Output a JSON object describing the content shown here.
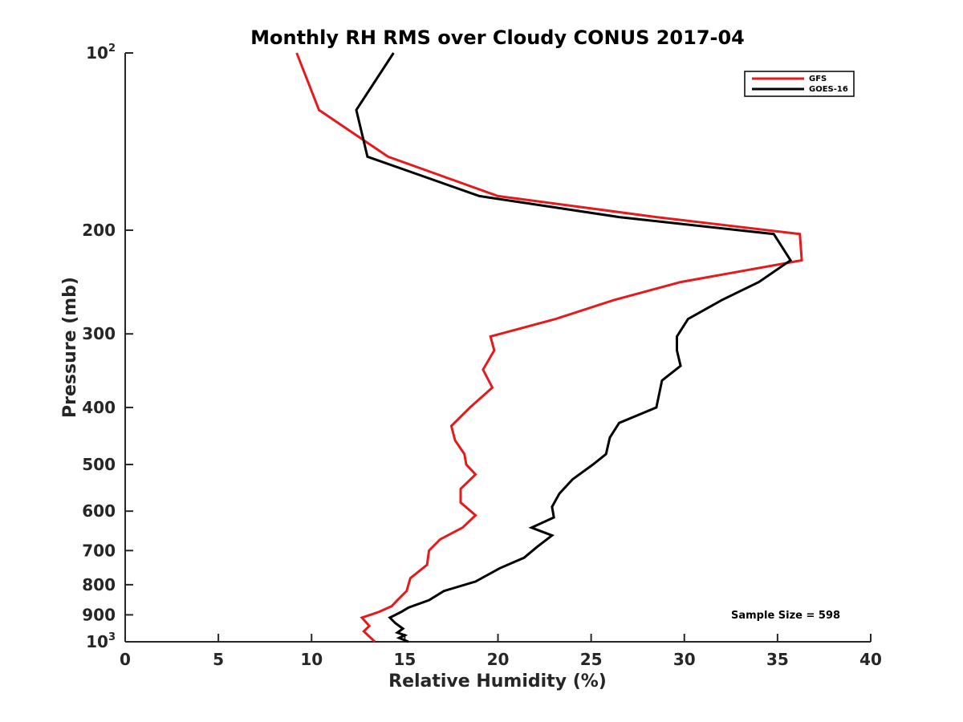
{
  "chart_data": {
    "type": "line",
    "title": "Monthly RH RMS over Cloudy CONUS  2017-04",
    "xlabel": "Relative Humidity (%)",
    "ylabel": "Pressure (mb)",
    "xlim": [
      0,
      40
    ],
    "ylim": [
      100,
      1000
    ],
    "y_scale": "log",
    "y_reversed": true,
    "grid": false,
    "x_ticks": [
      "0",
      "5",
      "10",
      "15",
      "20",
      "25",
      "30",
      "35",
      "40"
    ],
    "y_ticks": [
      {
        "value": 100,
        "base": "10",
        "exp": "2"
      },
      {
        "value": 200,
        "label": "200"
      },
      {
        "value": 300,
        "label": "300"
      },
      {
        "value": 400,
        "label": "400"
      },
      {
        "value": 500,
        "label": "500"
      },
      {
        "value": 600,
        "label": "600"
      },
      {
        "value": 700,
        "label": "700"
      },
      {
        "value": 800,
        "label": "800"
      },
      {
        "value": 900,
        "label": "900"
      },
      {
        "value": 1000,
        "base": "10",
        "exp": "3"
      }
    ],
    "legend_position": "top-right",
    "annotation": "Sample Size = 598",
    "series": [
      {
        "name": "GFS",
        "color": "#e41a1c",
        "points": [
          [
            9.2,
            100
          ],
          [
            10.4,
            125
          ],
          [
            14.1,
            150
          ],
          [
            20,
            175
          ],
          [
            28.5,
            190
          ],
          [
            36.2,
            203
          ],
          [
            36.3,
            225
          ],
          [
            29.8,
            245
          ],
          [
            26.2,
            263
          ],
          [
            23.1,
            283
          ],
          [
            19.6,
            303
          ],
          [
            19.8,
            320
          ],
          [
            19.2,
            345
          ],
          [
            19.7,
            370
          ],
          [
            18.5,
            400
          ],
          [
            17.5,
            430
          ],
          [
            17.7,
            455
          ],
          [
            18.2,
            480
          ],
          [
            18.3,
            500
          ],
          [
            18.8,
            520
          ],
          [
            18.0,
            550
          ],
          [
            18.0,
            580
          ],
          [
            18.8,
            610
          ],
          [
            18.1,
            640
          ],
          [
            16.9,
            670
          ],
          [
            16.3,
            700
          ],
          [
            16.2,
            740
          ],
          [
            15.3,
            780
          ],
          [
            15.1,
            820
          ],
          [
            14.6,
            850
          ],
          [
            14.3,
            870
          ],
          [
            13.6,
            890
          ],
          [
            12.7,
            910
          ],
          [
            13.1,
            940
          ],
          [
            12.8,
            960
          ],
          [
            13.4,
            1000
          ]
        ]
      },
      {
        "name": "GOES-16",
        "color": "#000000",
        "points": [
          [
            14.4,
            100
          ],
          [
            12.4,
            125
          ],
          [
            13.0,
            150
          ],
          [
            19.0,
            175
          ],
          [
            26.5,
            190
          ],
          [
            34.8,
            203
          ],
          [
            35.7,
            225
          ],
          [
            34.0,
            245
          ],
          [
            32.0,
            263
          ],
          [
            30.2,
            283
          ],
          [
            29.6,
            303
          ],
          [
            29.6,
            320
          ],
          [
            29.8,
            340
          ],
          [
            28.8,
            360
          ],
          [
            28.5,
            400
          ],
          [
            26.5,
            425
          ],
          [
            26.0,
            450
          ],
          [
            25.8,
            480
          ],
          [
            25.1,
            500
          ],
          [
            24.0,
            530
          ],
          [
            23.3,
            560
          ],
          [
            22.9,
            590
          ],
          [
            23.0,
            615
          ],
          [
            21.8,
            640
          ],
          [
            22.9,
            660
          ],
          [
            22.1,
            690
          ],
          [
            21.4,
            720
          ],
          [
            20.1,
            750
          ],
          [
            18.8,
            790
          ],
          [
            17.1,
            820
          ],
          [
            16.3,
            850
          ],
          [
            15.2,
            875
          ],
          [
            14.8,
            890
          ],
          [
            14.2,
            910
          ],
          [
            14.5,
            930
          ],
          [
            14.9,
            950
          ],
          [
            14.6,
            965
          ],
          [
            15.0,
            975
          ],
          [
            14.7,
            985
          ],
          [
            15.2,
            1000
          ]
        ]
      }
    ]
  }
}
